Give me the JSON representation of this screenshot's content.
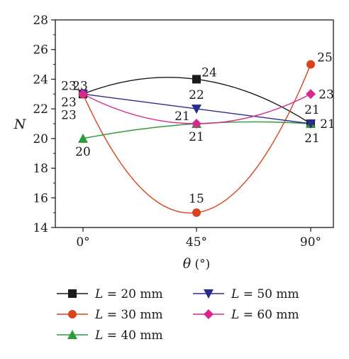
{
  "chart_data": {
    "type": "line",
    "xlabel_symbol": "θ",
    "xlabel_unit": "(°)",
    "ylabel": "N",
    "categories": [
      "0°",
      "45°",
      "90°"
    ],
    "x": [
      0,
      45,
      90
    ],
    "ylim": [
      14,
      28
    ],
    "yticks": [
      14,
      16,
      18,
      20,
      22,
      24,
      26,
      28
    ],
    "grid": false,
    "legend_placement": "bottom",
    "series": [
      {
        "key": "s20",
        "name": "L = 20 mm",
        "legend_symbol": "L",
        "legend_value": "= 20 mm",
        "color": "#1a1a1a",
        "marker": "square",
        "values": [
          23,
          24,
          21
        ]
      },
      {
        "key": "s30",
        "name": "L = 30 mm",
        "legend_symbol": "L",
        "legend_value": "= 30 mm",
        "color": "#d9441c",
        "marker": "circle",
        "values": [
          23,
          15,
          25
        ]
      },
      {
        "key": "s40",
        "name": "L = 40 mm",
        "legend_symbol": "L",
        "legend_value": "= 40 mm",
        "color": "#2e9b3a",
        "marker": "triangle-up",
        "values": [
          20,
          21,
          21
        ]
      },
      {
        "key": "s50",
        "name": "L = 50 mm",
        "legend_symbol": "L",
        "legend_value": "= 50 mm",
        "color": "#2b2a8f",
        "marker": "triangle-down",
        "values": [
          23,
          22,
          21
        ]
      },
      {
        "key": "s60",
        "name": "L = 60 mm",
        "legend_symbol": "L",
        "legend_value": "= 60 mm",
        "color": "#d6288e",
        "marker": "diamond",
        "values": [
          23,
          21,
          23
        ]
      }
    ],
    "data_labels": [
      {
        "series": "s20",
        "index": 0,
        "text": "23"
      },
      {
        "series": "s30",
        "index": 0,
        "text": "23"
      },
      {
        "series": "s50",
        "index": 0,
        "text": "23"
      },
      {
        "series": "s60",
        "index": 0,
        "text": "23"
      },
      {
        "series": "s40",
        "index": 0,
        "text": "20"
      },
      {
        "series": "s20",
        "index": 1,
        "text": "24"
      },
      {
        "series": "s50",
        "index": 1,
        "text": "22"
      },
      {
        "series": "s40",
        "index": 1,
        "text": "21"
      },
      {
        "series": "s60",
        "index": 1,
        "text": "21"
      },
      {
        "series": "s30",
        "index": 1,
        "text": "15"
      },
      {
        "series": "s30",
        "index": 2,
        "text": "25"
      },
      {
        "series": "s60",
        "index": 2,
        "text": "23"
      },
      {
        "series": "s50",
        "index": 2,
        "text": "21"
      },
      {
        "series": "s40",
        "index": 2,
        "text": "21"
      },
      {
        "series": "s20",
        "index": 2,
        "text": "21"
      }
    ]
  }
}
